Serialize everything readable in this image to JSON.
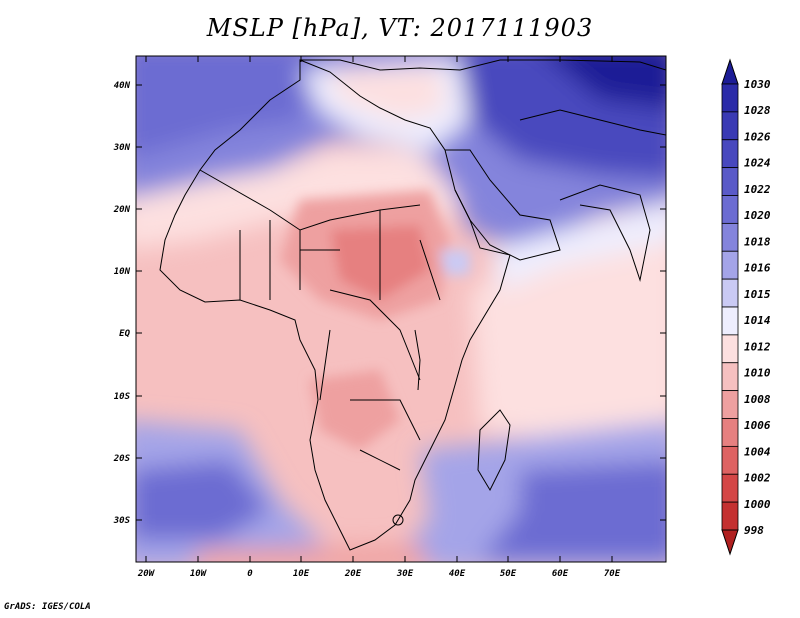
{
  "title": "MSLP [hPa], VT: 2017111903",
  "credit": "GrADS: IGES/COLA",
  "lat_labels": [
    "40N",
    "30N",
    "20N",
    "10N",
    "EQ",
    "10S",
    "20S",
    "30S"
  ],
  "lon_labels": [
    "20W",
    "10W",
    "0",
    "10E",
    "20E",
    "30E",
    "40E",
    "50E",
    "60E",
    "70E"
  ],
  "colorbar": {
    "levels": [
      "1030",
      "1028",
      "1026",
      "1024",
      "1022",
      "1020",
      "1018",
      "1016",
      "1015",
      "1014",
      "1012",
      "1010",
      "1008",
      "1006",
      "1004",
      "1002",
      "1000",
      "998"
    ],
    "colors": [
      "#1c1c96",
      "#2b2ba8",
      "#3a3ab4",
      "#4848be",
      "#5a5ac8",
      "#6c6cd2",
      "#8484dc",
      "#a4a4e8",
      "#cacaf4",
      "#eeeefe",
      "#fde0e0",
      "#f6c0c0",
      "#eea0a0",
      "#e68080",
      "#de6262",
      "#d44646",
      "#c43030",
      "#b02020"
    ]
  }
}
